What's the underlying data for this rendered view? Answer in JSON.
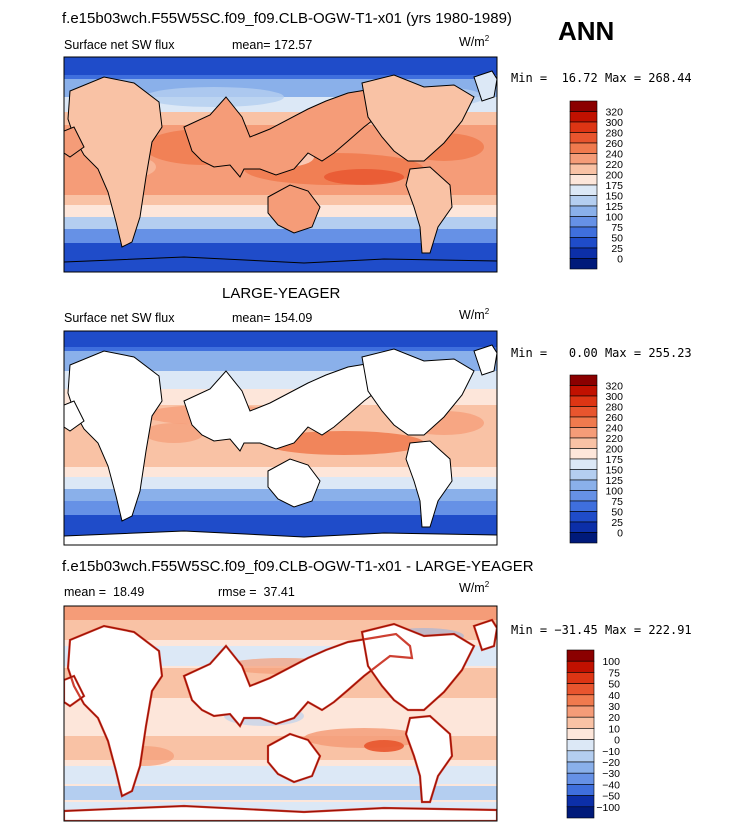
{
  "header": {
    "case_title": "f.e15b03wch.F55W5SC.f09_f09.CLB-OGW-T1-x01 (yrs 1980-1989)",
    "season": "ANN"
  },
  "chart_data": [
    {
      "type": "heatmap",
      "field": "Surface net SW flux",
      "mean_label": "mean=",
      "mean": "172.57",
      "units": "W/m",
      "units_exp": "2",
      "min_label": "Min =",
      "min": "16.72",
      "max_label": "Max =",
      "max": "268.44",
      "levels": [
        "320",
        "300",
        "280",
        "260",
        "240",
        "220",
        "200",
        "175",
        "150",
        "125",
        "100",
        "75",
        "50",
        "25",
        "0"
      ],
      "colors": [
        "#8b0000",
        "#c11100",
        "#dd3514",
        "#e8552e",
        "#f07a4e",
        "#f59c78",
        "#f9c2a5",
        "#fde6da",
        "#dce8f6",
        "#b4cef0",
        "#8ab0ea",
        "#6691e6",
        "#3f6fdd",
        "#1f4cc9",
        "#0c2fa8",
        "#001a7a"
      ]
    },
    {
      "type": "heatmap",
      "model_title": "LARGE-YEAGER",
      "field": "Surface net SW flux",
      "mean_label": "mean=",
      "mean": "154.09",
      "units": "W/m",
      "units_exp": "2",
      "min_label": "Min =",
      "min": "0.00",
      "max_label": "Max =",
      "max": "255.23",
      "levels": [
        "320",
        "300",
        "280",
        "260",
        "240",
        "220",
        "200",
        "175",
        "150",
        "125",
        "100",
        "75",
        "50",
        "25",
        "0"
      ],
      "colors": [
        "#8b0000",
        "#c11100",
        "#dd3514",
        "#e8552e",
        "#f07a4e",
        "#f59c78",
        "#f9c2a5",
        "#fde6da",
        "#dce8f6",
        "#b4cef0",
        "#8ab0ea",
        "#6691e6",
        "#3f6fdd",
        "#1f4cc9",
        "#0c2fa8",
        "#001a7a"
      ]
    },
    {
      "type": "heatmap",
      "diff_title": "f.e15b03wch.F55W5SC.f09_f09.CLB-OGW-T1-x01 - LARGE-YEAGER",
      "mean_label": "mean =",
      "mean": "18.49",
      "rmse_label": "rmse =",
      "rmse": "37.41",
      "units": "W/m",
      "units_exp": "2",
      "min_label": "Min =",
      "min": "−31.45",
      "max_label": "Max =",
      "max": "222.91",
      "levels": [
        "100",
        "75",
        "50",
        "40",
        "30",
        "20",
        "10",
        "0",
        "−10",
        "−20",
        "−30",
        "−40",
        "−50",
        "−100"
      ],
      "colors": [
        "#8b0000",
        "#c11100",
        "#dd3514",
        "#e8552e",
        "#f07a4e",
        "#f59c78",
        "#f9c2a5",
        "#fde6da",
        "#dce8f6",
        "#b4cef0",
        "#8ab0ea",
        "#6691e6",
        "#3f6fdd",
        "#0c2fa8",
        "#001a7a"
      ]
    }
  ]
}
